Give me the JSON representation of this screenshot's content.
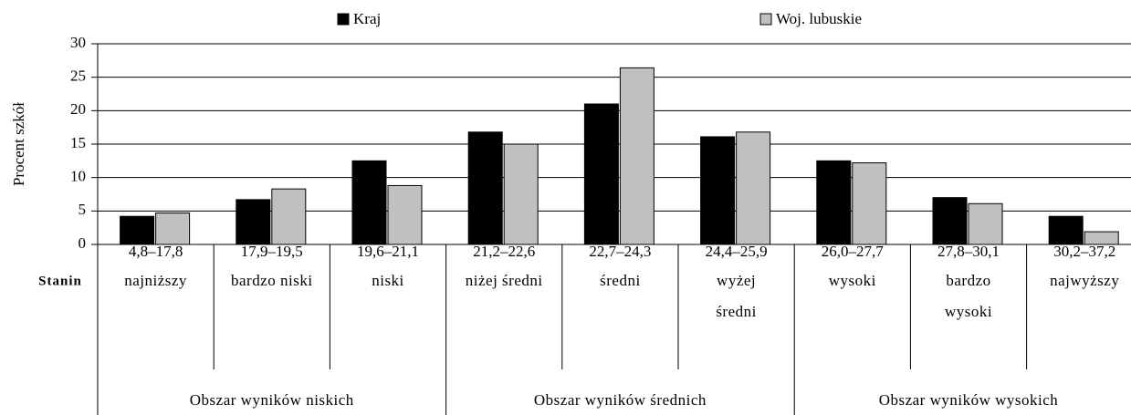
{
  "chart_data": {
    "type": "bar",
    "y_label": "Procent szkół",
    "categories": [
      "4,8–17,8",
      "17,9–19,5",
      "19,6–21,1",
      "21,2–22,6",
      "22,7–24,3",
      "24,4–25,9",
      "26,0–27,7",
      "27,8–30,1",
      "30,2–37,2"
    ],
    "row_label": "Stanin",
    "stanin": [
      [
        "najniższy"
      ],
      [
        "bardzo niski"
      ],
      [
        "niski"
      ],
      [
        "niżej średni"
      ],
      [
        "średni"
      ],
      [
        "wyżej",
        "średni"
      ],
      [
        "wysoki"
      ],
      [
        "bardzo",
        "wysoki"
      ],
      [
        "najwyższy"
      ]
    ],
    "regions": [
      "Obszar wyników niskich",
      "Obszar wyników średnich",
      "Obszar wyników wysokich"
    ],
    "series": [
      {
        "name": "Kraj",
        "color": "#000000",
        "values": [
          4.2,
          6.7,
          12.5,
          16.8,
          21.0,
          16.1,
          12.5,
          7.0,
          4.2
        ]
      },
      {
        "name": "Woj. lubuskie",
        "color": "#c0c0c0",
        "values": [
          4.7,
          8.3,
          8.8,
          15.0,
          26.4,
          16.8,
          12.2,
          6.1,
          1.9
        ]
      }
    ],
    "ylim": [
      0,
      30
    ],
    "yticks": [
      0,
      5,
      10,
      15,
      20,
      25,
      30
    ],
    "grid": true
  }
}
